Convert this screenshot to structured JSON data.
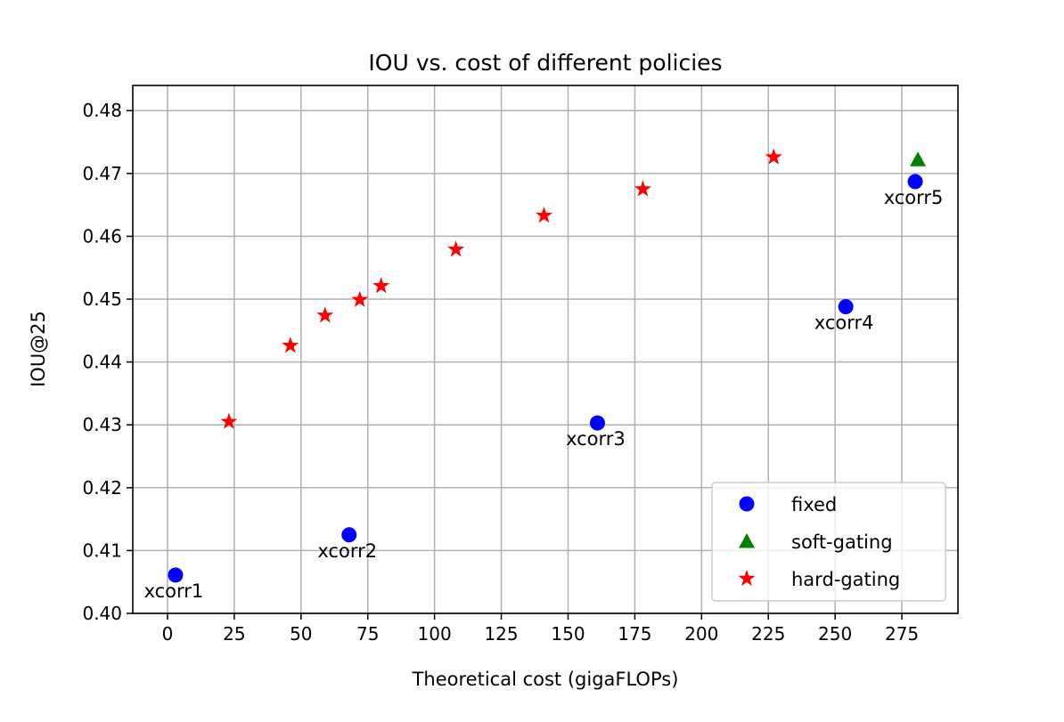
{
  "chart_data": {
    "type": "scatter",
    "title": "IOU vs. cost of different policies",
    "xlabel": "Theoretical cost (gigaFLOPs)",
    "ylabel": "IOU@25",
    "xlim": [
      -13,
      296
    ],
    "ylim": [
      0.4,
      0.484
    ],
    "xticks": [
      0,
      25,
      50,
      75,
      100,
      125,
      150,
      175,
      200,
      225,
      250,
      275
    ],
    "yticks": [
      0.4,
      0.41,
      0.42,
      0.43,
      0.44,
      0.45,
      0.46,
      0.47,
      0.48
    ],
    "ytick_labels": [
      "0.40",
      "0.41",
      "0.42",
      "0.43",
      "0.44",
      "0.45",
      "0.46",
      "0.47",
      "0.48"
    ],
    "grid": true,
    "legend_position": "lower-right",
    "series": [
      {
        "name": "fixed",
        "marker": "circle",
        "color": "#0000ff",
        "points": [
          {
            "x": 3,
            "y": 0.4061,
            "label": "xcorr1"
          },
          {
            "x": 68,
            "y": 0.4125,
            "label": "xcorr2"
          },
          {
            "x": 161,
            "y": 0.4303,
            "label": "xcorr3"
          },
          {
            "x": 254,
            "y": 0.4488,
            "label": "xcorr4"
          },
          {
            "x": 280,
            "y": 0.4687,
            "label": "xcorr5"
          }
        ]
      },
      {
        "name": "soft-gating",
        "marker": "triangle",
        "color": "#008000",
        "points": [
          {
            "x": 281,
            "y": 0.4722
          }
        ]
      },
      {
        "name": "hard-gating",
        "marker": "star",
        "color": "#ff0000",
        "points": [
          {
            "x": 23,
            "y": 0.4305
          },
          {
            "x": 46,
            "y": 0.4426
          },
          {
            "x": 59,
            "y": 0.4474
          },
          {
            "x": 72,
            "y": 0.4499
          },
          {
            "x": 80,
            "y": 0.4521
          },
          {
            "x": 108,
            "y": 0.4579
          },
          {
            "x": 141,
            "y": 0.4633
          },
          {
            "x": 178,
            "y": 0.4675
          },
          {
            "x": 227,
            "y": 0.4726
          }
        ]
      }
    ]
  }
}
